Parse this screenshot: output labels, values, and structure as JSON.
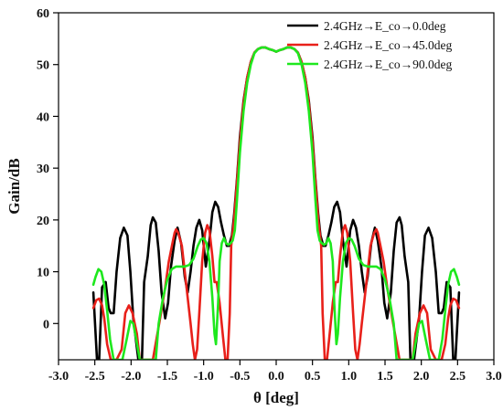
{
  "chart_data": {
    "type": "line",
    "xlabel": "θ [deg]",
    "ylabel": "Gain/dB",
    "xlim": [
      -3.0,
      3.0
    ],
    "ylim": [
      -7,
      60
    ],
    "xticks": [
      -3.0,
      -2.5,
      -2.0,
      -1.5,
      -1.0,
      -0.5,
      0.0,
      0.5,
      1.0,
      1.5,
      2.0,
      2.5,
      3.0
    ],
    "xtick_labels": [
      "-3.0",
      "-2.5",
      "-2.0",
      "-1.5",
      "-1.0",
      "-0.5",
      "0.0",
      "0.5",
      "1.0",
      "1.5",
      "2.0",
      "2.5",
      "3.0"
    ],
    "yticks": [
      0,
      10,
      20,
      30,
      40,
      50,
      60
    ],
    "ytick_labels": [
      "0",
      "10",
      "20",
      "30",
      "40",
      "50",
      "60"
    ],
    "grid": false,
    "legend_position": "top-right",
    "series": [
      {
        "name": "2.4GHz→E_co→0.0deg",
        "color": "#000000",
        "x": [
          -2.52,
          -2.47,
          -2.44,
          -2.4,
          -2.35,
          -2.31,
          -2.28,
          -2.24,
          -2.2,
          -2.15,
          -2.1,
          -2.05,
          -2.01,
          -1.97,
          -1.9,
          -1.85,
          -1.82,
          -1.77,
          -1.73,
          -1.7,
          -1.66,
          -1.62,
          -1.58,
          -1.53,
          -1.49,
          -1.45,
          -1.4,
          -1.36,
          -1.31,
          -1.26,
          -1.22,
          -1.18,
          -1.14,
          -1.1,
          -1.06,
          -1.02,
          -0.97,
          -0.92,
          -0.88,
          -0.84,
          -0.8,
          -0.76,
          -0.72,
          -0.68,
          -0.65,
          -0.61,
          -0.58,
          -0.54,
          -0.5,
          -0.45,
          -0.4,
          -0.35,
          -0.3,
          -0.25,
          -0.2,
          -0.15,
          -0.1,
          -0.05,
          0.0,
          0.05,
          0.1,
          0.15,
          0.2,
          0.25,
          0.3,
          0.35,
          0.4,
          0.45,
          0.5,
          0.54,
          0.58,
          0.61,
          0.65,
          0.68,
          0.72,
          0.76,
          0.8,
          0.84,
          0.88,
          0.92,
          0.97,
          1.02,
          1.06,
          1.1,
          1.14,
          1.18,
          1.22,
          1.26,
          1.31,
          1.36,
          1.4,
          1.45,
          1.49,
          1.53,
          1.58,
          1.62,
          1.66,
          1.7,
          1.73,
          1.77,
          1.82,
          1.85,
          1.9,
          1.97,
          2.01,
          2.05,
          2.1,
          2.15,
          2.2,
          2.24,
          2.28,
          2.31,
          2.35,
          2.4,
          2.44,
          2.47,
          2.52
        ],
        "y": [
          6.0,
          -7.0,
          -7.0,
          7.0,
          8.0,
          3.0,
          2.0,
          2.0,
          10.0,
          16.5,
          18.5,
          17.0,
          10.0,
          1.0,
          -7.0,
          -7.0,
          8.0,
          13.0,
          19.0,
          20.5,
          19.5,
          14.0,
          6.0,
          1.0,
          4.0,
          11.0,
          16.0,
          18.5,
          15.5,
          9.0,
          6.0,
          10.0,
          15.0,
          18.5,
          20.0,
          18.0,
          11.0,
          16.0,
          21.5,
          23.5,
          22.5,
          19.5,
          17.0,
          15.0,
          15.0,
          17.0,
          21.0,
          28.0,
          36.0,
          43.0,
          47.5,
          50.5,
          52.3,
          53.0,
          53.3,
          53.3,
          53.0,
          52.8,
          52.5,
          52.8,
          53.0,
          53.3,
          53.3,
          53.0,
          52.3,
          50.5,
          47.5,
          43.0,
          36.0,
          28.0,
          21.0,
          17.0,
          15.0,
          15.0,
          17.0,
          19.5,
          22.5,
          23.5,
          21.5,
          16.0,
          11.0,
          18.0,
          20.0,
          18.5,
          15.0,
          10.0,
          6.0,
          9.0,
          15.5,
          18.5,
          16.0,
          11.0,
          4.0,
          1.0,
          6.0,
          14.0,
          19.5,
          20.5,
          19.0,
          13.0,
          8.0,
          -7.0,
          -7.0,
          1.0,
          10.0,
          17.0,
          18.5,
          16.5,
          10.0,
          2.0,
          2.0,
          3.0,
          8.0,
          7.0,
          -7.0,
          -7.0,
          6.0
        ]
      },
      {
        "name": "2.4GHz→E_co→45.0deg",
        "color": "#e8201a",
        "x": [
          -2.52,
          -2.48,
          -2.44,
          -2.4,
          -2.37,
          -2.33,
          -2.28,
          -2.2,
          -2.13,
          -2.08,
          -2.03,
          -1.98,
          -1.92,
          -1.88,
          -1.8,
          -1.7,
          -1.6,
          -1.53,
          -1.48,
          -1.43,
          -1.4,
          -1.38,
          -1.35,
          -1.3,
          -1.26,
          -1.22,
          -1.18,
          -1.15,
          -1.12,
          -1.09,
          -1.06,
          -1.02,
          -0.98,
          -0.95,
          -0.92,
          -0.88,
          -0.85,
          -0.82,
          -0.78,
          -0.73,
          -0.7,
          -0.67,
          -0.64,
          -0.62,
          -0.58,
          -0.54,
          -0.5,
          -0.45,
          -0.4,
          -0.35,
          -0.3,
          -0.25,
          -0.2,
          -0.15,
          -0.1,
          -0.05,
          0.0,
          0.05,
          0.1,
          0.15,
          0.2,
          0.25,
          0.3,
          0.35,
          0.4,
          0.45,
          0.5,
          0.54,
          0.58,
          0.62,
          0.64,
          0.67,
          0.7,
          0.73,
          0.78,
          0.82,
          0.85,
          0.88,
          0.92,
          0.95,
          0.98,
          1.02,
          1.06,
          1.09,
          1.12,
          1.15,
          1.18,
          1.22,
          1.26,
          1.3,
          1.35,
          1.38,
          1.4,
          1.43,
          1.48,
          1.53,
          1.6,
          1.7,
          1.8,
          1.88,
          1.92,
          1.98,
          2.03,
          2.08,
          2.13,
          2.2,
          2.28,
          2.33,
          2.37,
          2.4,
          2.44,
          2.48,
          2.52
        ],
        "y": [
          3.0,
          4.5,
          4.8,
          3.5,
          1.0,
          -4.0,
          -7.0,
          -7.0,
          -5.0,
          2.0,
          3.5,
          2.0,
          -2.0,
          -7.0,
          -7.0,
          -7.0,
          1.0,
          7.0,
          12.0,
          15.5,
          17.5,
          18.2,
          17.5,
          15.0,
          10.0,
          5.0,
          0.0,
          -4.0,
          -7.0,
          -5.0,
          2.0,
          12.0,
          17.5,
          19.0,
          18.0,
          13.0,
          8.0,
          8.0,
          4.0,
          -3.0,
          -7.0,
          -7.0,
          2.0,
          15.0,
          20.0,
          27.5,
          35.0,
          42.5,
          47.5,
          50.5,
          52.3,
          53.0,
          53.3,
          53.3,
          53.0,
          52.8,
          52.5,
          52.8,
          53.0,
          53.3,
          53.3,
          53.0,
          52.3,
          50.5,
          47.5,
          42.5,
          35.0,
          27.5,
          20.0,
          15.0,
          2.0,
          -7.0,
          -7.0,
          -3.0,
          4.0,
          8.0,
          8.0,
          13.0,
          18.0,
          19.0,
          17.5,
          12.0,
          2.0,
          -5.0,
          -7.0,
          -4.0,
          0.0,
          5.0,
          10.0,
          15.0,
          17.5,
          18.2,
          17.5,
          15.5,
          12.0,
          7.0,
          1.0,
          -7.0,
          -7.0,
          -7.0,
          -2.0,
          2.0,
          3.5,
          2.0,
          -5.0,
          -7.0,
          -7.0,
          -4.0,
          1.0,
          3.5,
          4.8,
          4.5,
          3.0
        ]
      },
      {
        "name": "2.4GHz→E_co→90.0deg",
        "color": "#1ee81e",
        "x": [
          -2.52,
          -2.49,
          -2.45,
          -2.41,
          -2.37,
          -2.33,
          -2.29,
          -2.24,
          -2.18,
          -2.12,
          -2.06,
          -2.01,
          -1.97,
          -1.93,
          -1.88,
          -1.8,
          -1.72,
          -1.66,
          -1.62,
          -1.56,
          -1.5,
          -1.44,
          -1.38,
          -1.32,
          -1.26,
          -1.2,
          -1.14,
          -1.08,
          -1.04,
          -1.0,
          -0.96,
          -0.92,
          -0.88,
          -0.85,
          -0.83,
          -0.8,
          -0.78,
          -0.75,
          -0.72,
          -0.69,
          -0.66,
          -0.63,
          -0.6,
          -0.57,
          -0.54,
          -0.5,
          -0.45,
          -0.4,
          -0.35,
          -0.3,
          -0.25,
          -0.2,
          -0.15,
          -0.1,
          -0.05,
          0.0,
          0.05,
          0.1,
          0.15,
          0.2,
          0.25,
          0.3,
          0.35,
          0.4,
          0.45,
          0.5,
          0.54,
          0.57,
          0.6,
          0.63,
          0.66,
          0.69,
          0.72,
          0.75,
          0.78,
          0.8,
          0.83,
          0.85,
          0.88,
          0.92,
          0.96,
          1.0,
          1.04,
          1.08,
          1.14,
          1.2,
          1.26,
          1.32,
          1.38,
          1.44,
          1.5,
          1.56,
          1.62,
          1.66,
          1.72,
          1.8,
          1.88,
          1.93,
          1.97,
          2.01,
          2.06,
          2.12,
          2.18,
          2.24,
          2.29,
          2.33,
          2.37,
          2.41,
          2.45,
          2.49,
          2.52
        ],
        "y": [
          7.5,
          9.0,
          10.5,
          10.0,
          7.5,
          2.5,
          -3.0,
          -7.0,
          -7.0,
          -7.0,
          -3.0,
          0.5,
          0.0,
          -3.0,
          -7.0,
          -7.0,
          -7.0,
          -7.0,
          0.0,
          5.0,
          8.5,
          10.5,
          11.0,
          11.0,
          11.0,
          11.3,
          12.5,
          15.0,
          16.2,
          16.5,
          15.5,
          12.0,
          5.0,
          -2.0,
          -4.0,
          4.0,
          12.0,
          15.5,
          16.5,
          15.5,
          15.2,
          15.5,
          16.0,
          18.0,
          24.0,
          33.0,
          41.0,
          46.5,
          50.0,
          52.2,
          53.0,
          53.3,
          53.3,
          53.0,
          52.8,
          52.5,
          52.8,
          53.0,
          53.3,
          53.3,
          53.0,
          52.2,
          50.0,
          46.5,
          41.0,
          33.0,
          24.0,
          18.0,
          16.0,
          15.5,
          15.2,
          15.5,
          16.5,
          15.5,
          12.0,
          4.0,
          -4.0,
          -2.0,
          5.0,
          12.0,
          15.5,
          16.5,
          16.2,
          15.0,
          12.5,
          11.3,
          11.0,
          11.0,
          11.0,
          10.5,
          8.5,
          5.0,
          0.0,
          -7.0,
          -7.0,
          -7.0,
          -7.0,
          -3.0,
          0.0,
          0.5,
          -3.0,
          -7.0,
          -7.0,
          -7.0,
          -3.0,
          2.5,
          7.5,
          10.0,
          10.5,
          9.0,
          7.5
        ]
      }
    ]
  }
}
